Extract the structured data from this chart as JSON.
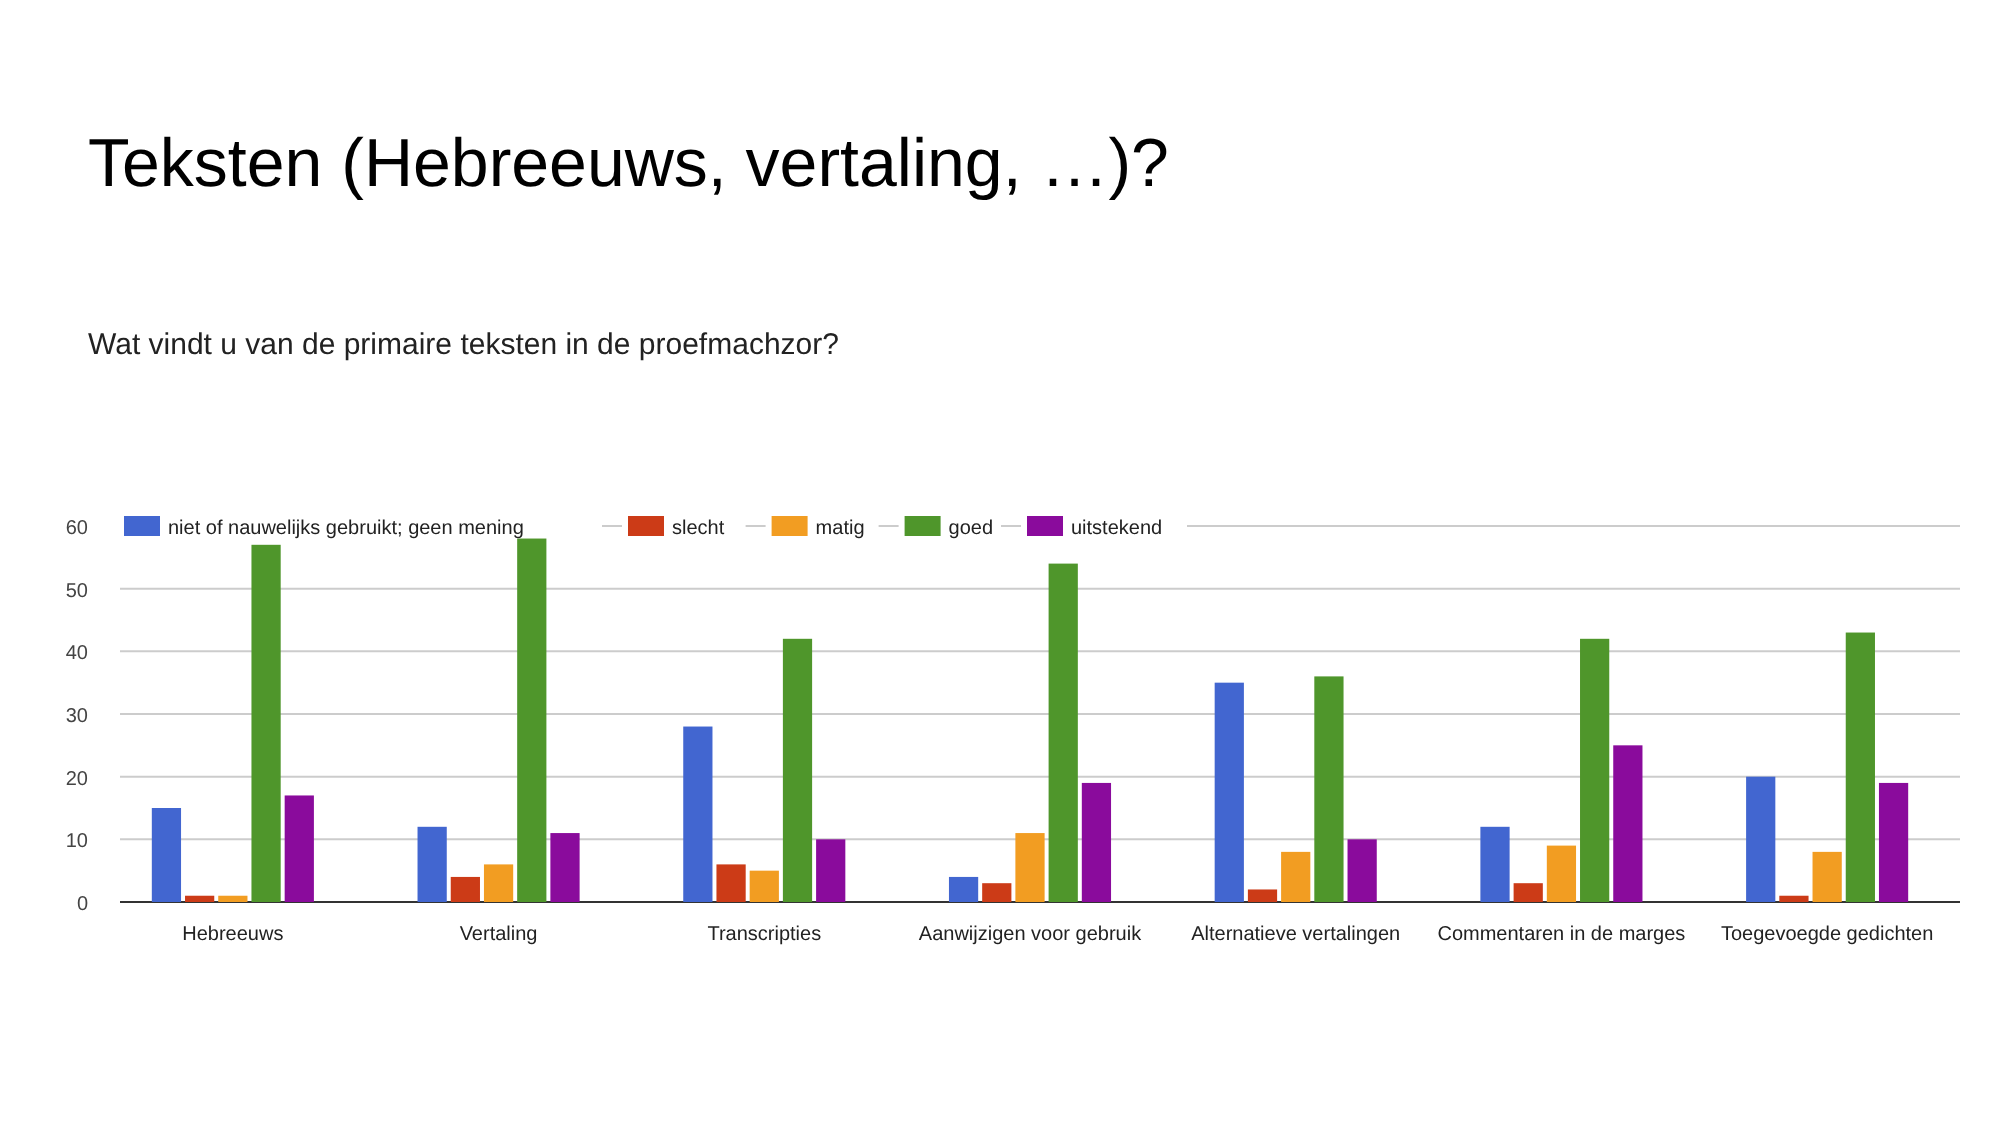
{
  "chart_data": {
    "type": "bar",
    "title": "Teksten (Hebreeuws, vertaling, …)?",
    "subtitle": "Wat vindt u van de primaire teksten in de proefmachzor?",
    "categories": [
      "Hebreeuws",
      "Vertaling",
      "Transcripties",
      "Aanwijzigen voor gebruik",
      "Alternatieve vertalingen",
      "Commentaren in de marges",
      "Toegevoegde gedichten"
    ],
    "series": [
      {
        "name": "niet of nauwelijks gebruikt; geen mening",
        "color": "#4266d0",
        "values": [
          15,
          12,
          28,
          4,
          35,
          12,
          20
        ]
      },
      {
        "name": "slecht",
        "color": "#cc3b17",
        "values": [
          1,
          4,
          6,
          3,
          2,
          3,
          1
        ]
      },
      {
        "name": "matig",
        "color": "#f29d22",
        "values": [
          1,
          6,
          5,
          11,
          8,
          9,
          8
        ]
      },
      {
        "name": "goed",
        "color": "#4f962b",
        "values": [
          57,
          58,
          42,
          54,
          36,
          42,
          43
        ]
      },
      {
        "name": "uitstekend",
        "color": "#8a0b9c",
        "values": [
          17,
          11,
          10,
          19,
          10,
          25,
          19
        ]
      }
    ],
    "ylim": [
      0,
      60
    ],
    "yticks": [
      0,
      10,
      20,
      30,
      40,
      50,
      60
    ],
    "grid": "y",
    "legend": "top"
  }
}
